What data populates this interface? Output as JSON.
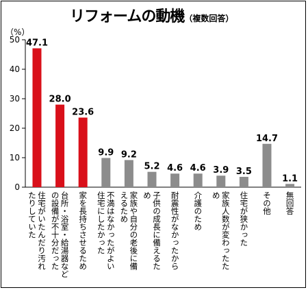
{
  "title": "リフォームの動機",
  "subtitle": "（複数回答）",
  "unit": "（%）",
  "colors": {
    "highlight": "#d9101a",
    "normal": "#8c8c8c",
    "axis": "#000000"
  },
  "chart_data": {
    "type": "bar",
    "title": "リフォームの動機（複数回答）",
    "ylabel": "（%）",
    "ylim": [
      0,
      50
    ],
    "yticks": [
      0,
      10,
      20,
      30,
      40,
      50
    ],
    "grid": false,
    "categories": [
      [
        "住宅がいたんだり汚れ",
        "たりしていた"
      ],
      [
        "台所・浴室・給湯器など",
        "の設備が不十分だった"
      ],
      [
        "家を長持ちさせるため"
      ],
      [
        "不満はなかったがよい",
        "住宅にしたかった"
      ],
      [
        "家族や自分の老後に備",
        "えるため"
      ],
      [
        "子供の成長に備えるた",
        "め"
      ],
      [
        "耐震性がなかったから"
      ],
      [
        "介護のため"
      ],
      [
        "家族人数が変わったた",
        "め"
      ],
      [
        "住宅が狭かった"
      ],
      [
        "その他"
      ],
      [
        "無回答"
      ]
    ],
    "values": [
      47.1,
      28.0,
      23.6,
      9.9,
      9.2,
      5.2,
      4.6,
      4.6,
      3.9,
      3.5,
      14.7,
      1.1
    ],
    "value_labels": [
      "47.1",
      "28.0",
      "23.6",
      "9.9",
      "9.2",
      "5.2",
      "4.6",
      "4.6",
      "3.9",
      "3.5",
      "14.7",
      "1.1"
    ],
    "highlighted": [
      true,
      true,
      true,
      false,
      false,
      false,
      false,
      false,
      false,
      false,
      false,
      false
    ]
  }
}
